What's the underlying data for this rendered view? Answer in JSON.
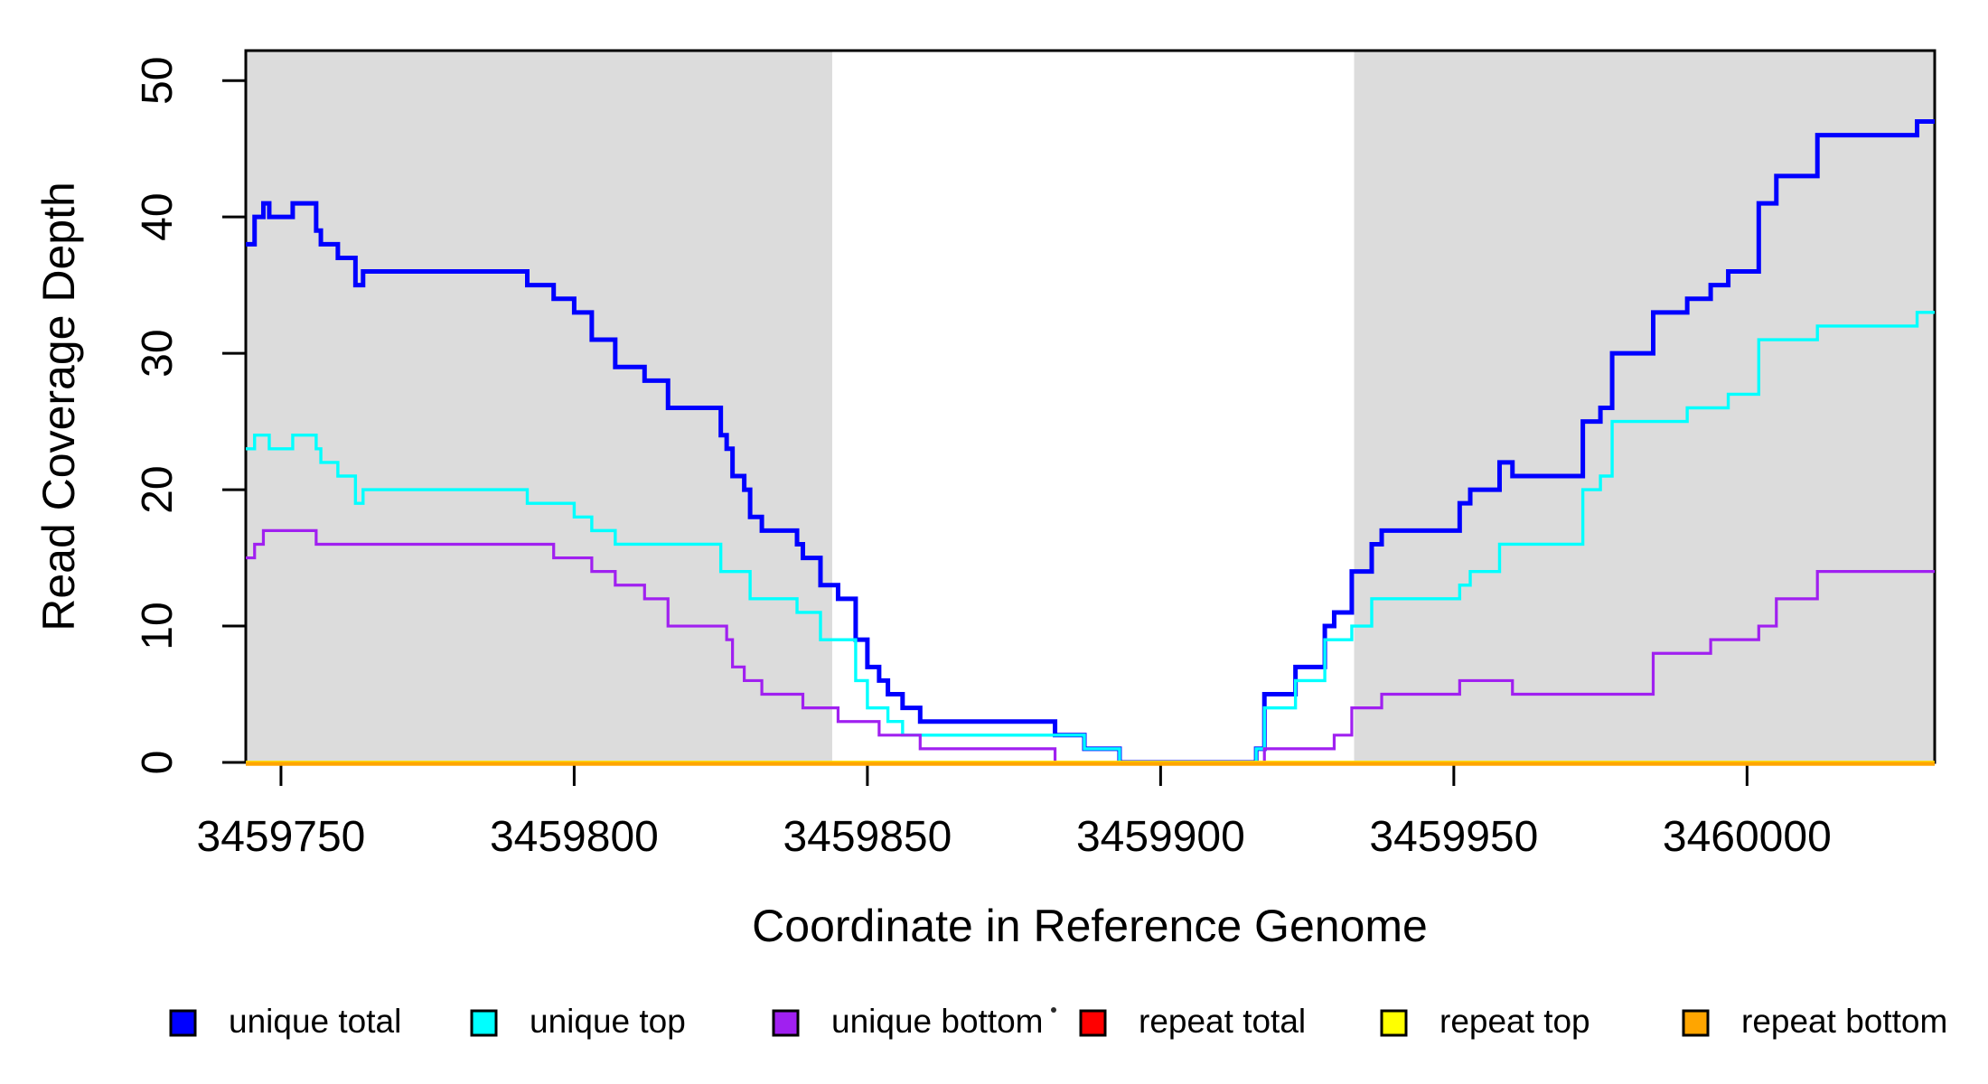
{
  "figure": {
    "background": "#ffffff"
  },
  "chart_data": {
    "type": "line",
    "subtype": "step",
    "title": "",
    "xlabel": "Coordinate in Reference Genome",
    "ylabel": "Read Coverage Depth",
    "xlim": [
      3459744,
      3460032
    ],
    "ylim": [
      0,
      52.2
    ],
    "x_ticks": [
      3459750,
      3459800,
      3459850,
      3459900,
      3459950,
      3460000
    ],
    "y_ticks": [
      0,
      10,
      20,
      30,
      40,
      50
    ],
    "grid": false,
    "legend_position": "bottom",
    "shaded_regions": [
      {
        "x_start": 3459744,
        "x_end": 3459844,
        "color": "#DCDCDC"
      },
      {
        "x_start": 3459933,
        "x_end": 3460032,
        "color": "#DCDCDC"
      }
    ],
    "series": [
      {
        "name": "unique total",
        "color": "#0000FF",
        "width": 5,
        "start": 38,
        "steps": [
          [
            3459745.5,
            40
          ],
          [
            3459747,
            41
          ],
          [
            3459748,
            40
          ],
          [
            3459752,
            41
          ],
          [
            3459756,
            39
          ],
          [
            3459756.8,
            38
          ],
          [
            3459759.7,
            37
          ],
          [
            3459762.7,
            35
          ],
          [
            3459764,
            36
          ],
          [
            3459792,
            35
          ],
          [
            3459796.5,
            34
          ],
          [
            3459800,
            33
          ],
          [
            3459803,
            31
          ],
          [
            3459807,
            29
          ],
          [
            3459812,
            28
          ],
          [
            3459816,
            26
          ],
          [
            3459825,
            24
          ],
          [
            3459826,
            23
          ],
          [
            3459827,
            21
          ],
          [
            3459829,
            20
          ],
          [
            3459830,
            18
          ],
          [
            3459832,
            17
          ],
          [
            3459838,
            16
          ],
          [
            3459839,
            15
          ],
          [
            3459842,
            13
          ],
          [
            3459845,
            12
          ],
          [
            3459848,
            9
          ],
          [
            3459850,
            7
          ],
          [
            3459852,
            6
          ],
          [
            3459853.5,
            5
          ],
          [
            3459856,
            4
          ],
          [
            3459859,
            3
          ],
          [
            3459882,
            2
          ],
          [
            3459887,
            1
          ],
          [
            3459893,
            0
          ],
          [
            3459916.3,
            1
          ],
          [
            3459917.7,
            5
          ],
          [
            3459923,
            7
          ],
          [
            3459928,
            10
          ],
          [
            3459929.6,
            11
          ],
          [
            3459932.6,
            14
          ],
          [
            3459936,
            16
          ],
          [
            3459937.7,
            17
          ],
          [
            3459951,
            19
          ],
          [
            3459952.8,
            20
          ],
          [
            3459957.8,
            22
          ],
          [
            3459960,
            21
          ],
          [
            3459972,
            25
          ],
          [
            3459975,
            26
          ],
          [
            3459977,
            30
          ],
          [
            3459984,
            33
          ],
          [
            3459989.8,
            34
          ],
          [
            3459993.8,
            35
          ],
          [
            3459996.8,
            36
          ],
          [
            3460002,
            41
          ],
          [
            3460005,
            43
          ],
          [
            3460012,
            46
          ],
          [
            3460029,
            47
          ]
        ]
      },
      {
        "name": "unique top",
        "color": "#00FFFF",
        "width": 3.4,
        "start": 23,
        "steps": [
          [
            3459745.5,
            24
          ],
          [
            3459748,
            23
          ],
          [
            3459752,
            24
          ],
          [
            3459756,
            23
          ],
          [
            3459756.8,
            22
          ],
          [
            3459759.7,
            21
          ],
          [
            3459762.7,
            19
          ],
          [
            3459764,
            20
          ],
          [
            3459792,
            19
          ],
          [
            3459800,
            18
          ],
          [
            3459803,
            17
          ],
          [
            3459807,
            16
          ],
          [
            3459825,
            14
          ],
          [
            3459830,
            12
          ],
          [
            3459838,
            11
          ],
          [
            3459842,
            9
          ],
          [
            3459848,
            6
          ],
          [
            3459850,
            4
          ],
          [
            3459853.5,
            3
          ],
          [
            3459856,
            2
          ],
          [
            3459887,
            1
          ],
          [
            3459893,
            0
          ],
          [
            3459916.3,
            1
          ],
          [
            3459917.7,
            4
          ],
          [
            3459923,
            6
          ],
          [
            3459928,
            9
          ],
          [
            3459932.6,
            10
          ],
          [
            3459936,
            12
          ],
          [
            3459951,
            13
          ],
          [
            3459952.8,
            14
          ],
          [
            3459957.8,
            16
          ],
          [
            3459972,
            20
          ],
          [
            3459975,
            21
          ],
          [
            3459977,
            25
          ],
          [
            3459989.8,
            26
          ],
          [
            3459996.8,
            27
          ],
          [
            3460002,
            31
          ],
          [
            3460012,
            32
          ],
          [
            3460029,
            33
          ]
        ]
      },
      {
        "name": "unique bottom",
        "color": "#A020F0",
        "width": 3.2,
        "start": 15,
        "steps": [
          [
            3459745.5,
            16
          ],
          [
            3459747,
            17
          ],
          [
            3459756,
            16
          ],
          [
            3459796.5,
            15
          ],
          [
            3459803,
            14
          ],
          [
            3459807,
            13
          ],
          [
            3459812,
            12
          ],
          [
            3459816,
            10
          ],
          [
            3459826,
            9
          ],
          [
            3459827,
            7
          ],
          [
            3459829,
            6
          ],
          [
            3459832,
            5
          ],
          [
            3459839,
            4
          ],
          [
            3459845,
            3
          ],
          [
            3459852,
            2
          ],
          [
            3459859,
            1
          ],
          [
            3459882,
            0
          ],
          [
            3459917.7,
            1
          ],
          [
            3459929.6,
            2
          ],
          [
            3459932.6,
            4
          ],
          [
            3459937.7,
            5
          ],
          [
            3459951,
            6
          ],
          [
            3459960,
            5
          ],
          [
            3459984,
            8
          ],
          [
            3459993.8,
            9
          ],
          [
            3460002,
            10
          ],
          [
            3460005,
            12
          ],
          [
            3460012,
            14
          ]
        ]
      },
      {
        "name": "repeat total",
        "color": "#FF0000",
        "width": 3.4,
        "start": 0,
        "steps": []
      },
      {
        "name": "repeat top",
        "color": "#FFFF00",
        "width": 3.4,
        "start": 0,
        "steps": []
      },
      {
        "name": "repeat bottom",
        "color": "#FFA500",
        "width": 4.4,
        "start": 0,
        "steps": []
      }
    ]
  },
  "legend": {
    "items": [
      {
        "label": "unique total",
        "color": "#0000FF"
      },
      {
        "label": "unique top",
        "color": "#00FFFF"
      },
      {
        "label": "unique bottom",
        "color": "#A020F0"
      },
      {
        "label": "repeat total",
        "color": "#FF0000"
      },
      {
        "label": "repeat top",
        "color": "#FFFF00"
      },
      {
        "label": "repeat bottom",
        "color": "#FFA500"
      }
    ]
  }
}
